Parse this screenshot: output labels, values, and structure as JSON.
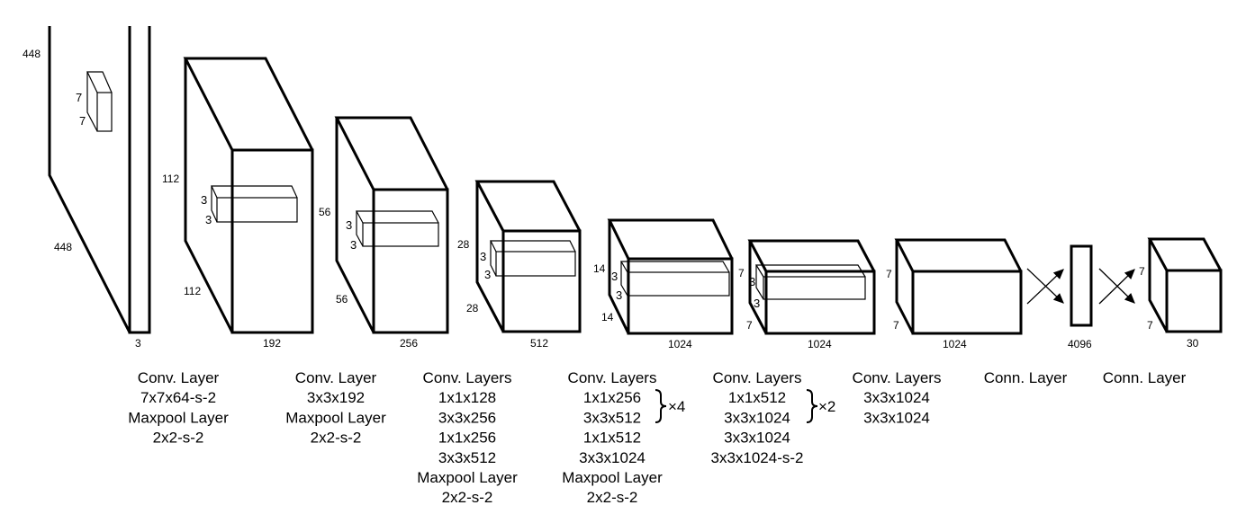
{
  "dims": {
    "input_h": "448",
    "input_w": "448",
    "input_c": "3",
    "k1a": "7",
    "k1b": "7",
    "l2_h": "112",
    "l2_w": "112",
    "l2_c": "192",
    "k2a": "3",
    "k2b": "3",
    "l3_h": "56",
    "l3_w": "56",
    "l3_c": "256",
    "k3a": "3",
    "k3b": "3",
    "l4_h": "28",
    "l4_w": "28",
    "l4_c": "512",
    "k4a": "3",
    "k4b": "3",
    "l5_h": "14",
    "l5_w": "14",
    "l5_c": "1024",
    "k5a": "3",
    "k5b": "3",
    "l6_h": "7",
    "l6_w": "7",
    "l6_c": "1024",
    "k6a": "3",
    "k6b": "3",
    "l7_h": "7",
    "l7_w": "7",
    "l7_c": "1024",
    "fc1": "4096",
    "out_h": "7",
    "out_w": "7",
    "out_c": "30"
  },
  "captions": [
    {
      "lines": [
        "Conv. Layer",
        "7x7x64-s-2",
        "Maxpool Layer",
        "2x2-s-2"
      ]
    },
    {
      "lines": [
        "Conv. Layer",
        "3x3x192",
        "Maxpool Layer",
        "2x2-s-2"
      ]
    },
    {
      "lines": [
        "Conv. Layers",
        "1x1x128",
        "3x3x256",
        "1x1x256",
        "3x3x512",
        "Maxpool Layer",
        "2x2-s-2"
      ]
    },
    {
      "lines": [
        "Conv. Layers",
        "1x1x256",
        "3x3x512",
        "1x1x512",
        "3x3x1024",
        "Maxpool Layer",
        "2x2-s-2"
      ],
      "repeat": "×4"
    },
    {
      "lines": [
        "Conv. Layers",
        "1x1x512",
        "3x3x1024",
        "3x3x1024",
        "3x3x1024-s-2"
      ],
      "repeat": "×2"
    },
    {
      "lines": [
        "Conv. Layers",
        "3x3x1024",
        "3x3x1024"
      ]
    },
    {
      "lines": [
        "Conn. Layer"
      ]
    },
    {
      "lines": [
        "Conn. Layer"
      ]
    }
  ]
}
